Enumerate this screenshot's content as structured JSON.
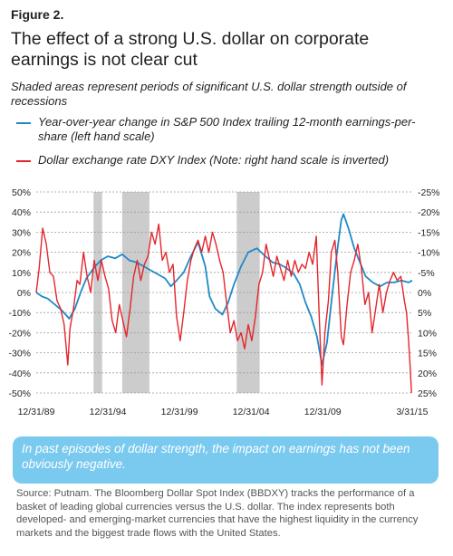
{
  "figure_label": "Figure 2.",
  "title": "The effect of a strong U.S. dollar on corporate earnings is not clear cut",
  "subtitle": "Shaded areas represent periods of significant U.S. dollar strength outside of recessions",
  "callout": "In past episodes of dollar strength, the impact on  earnings has not been obviously negative.",
  "source": "Source: Putnam. The Bloomberg Dollar Spot Index (BBDXY) tracks the performance of a basket of leading global currencies versus the U.S. dollar. The index represents both developed- and emerging-market currencies that have the highest liquidity in the currency markets and the biggest trade flows with the United States.",
  "colors": {
    "eps": "#1e8ac8",
    "dxy": "#e3262d",
    "shade": "#cccccc",
    "callout": "#7ac9ee"
  },
  "chart_data": {
    "type": "line",
    "legend": [
      "Year-over-year change in S&P 500 Index trailing 12-month earnings-per-share (left hand scale)",
      "Dollar exchange rate DXY Index (Note: right hand scale is inverted)"
    ],
    "x_range": [
      1989.0,
      2015.25
    ],
    "x_ticks": [
      {
        "x": 1989.0,
        "label": "12/31/89"
      },
      {
        "x": 1994.0,
        "label": "12/31/94"
      },
      {
        "x": 1999.0,
        "label": "12/31/99"
      },
      {
        "x": 2004.0,
        "label": "12/31/04"
      },
      {
        "x": 2009.0,
        "label": "12/31/09"
      },
      {
        "x": 2015.25,
        "label": "3/31/15"
      }
    ],
    "left_axis": {
      "range": [
        -50,
        50
      ],
      "ticks": [
        50,
        40,
        30,
        20,
        10,
        0,
        -10,
        -20,
        -30,
        -40,
        -50
      ],
      "tick_labels": [
        "50%",
        "40%",
        "30%",
        "20%",
        "10%",
        "0%",
        "-10%",
        "-20%",
        "-30%",
        "-40%",
        "-50%"
      ]
    },
    "right_axis": {
      "inverted": true,
      "range": [
        -25,
        25
      ],
      "ticks": [
        -25,
        -20,
        -15,
        -10,
        -5,
        0,
        5,
        10,
        15,
        20,
        25
      ],
      "tick_labels": [
        "-25%",
        "-20%",
        "-15%",
        "-10%",
        "-5%",
        "0%",
        "5%",
        "10%",
        "15%",
        "20%",
        "25%"
      ]
    },
    "grid": true,
    "shaded_periods": [
      [
        1993.0,
        1993.6
      ],
      [
        1995.0,
        1996.9
      ],
      [
        2003.0,
        2004.6
      ]
    ],
    "series": [
      {
        "name": "Year-over-year change in S&P 500 Index trailing 12-month earnings-per-share (left hand scale)",
        "axis": "left",
        "color": "#1e8ac8",
        "points": [
          [
            1989.0,
            0
          ],
          [
            1989.4,
            -2
          ],
          [
            1989.8,
            -3
          ],
          [
            1990.3,
            -6
          ],
          [
            1990.8,
            -9
          ],
          [
            1991.3,
            -13
          ],
          [
            1991.7,
            -8
          ],
          [
            1992.1,
            0
          ],
          [
            1992.5,
            7
          ],
          [
            1993.0,
            12
          ],
          [
            1993.5,
            16
          ],
          [
            1994.0,
            18
          ],
          [
            1994.5,
            17
          ],
          [
            1995.0,
            19
          ],
          [
            1995.5,
            16
          ],
          [
            1996.0,
            15
          ],
          [
            1996.5,
            13
          ],
          [
            1997.0,
            11
          ],
          [
            1997.5,
            9
          ],
          [
            1998.0,
            7
          ],
          [
            1998.4,
            3
          ],
          [
            1998.8,
            6
          ],
          [
            1999.3,
            10
          ],
          [
            1999.8,
            18
          ],
          [
            2000.3,
            25
          ],
          [
            2000.8,
            13
          ],
          [
            2001.1,
            -2
          ],
          [
            2001.5,
            -8
          ],
          [
            2002.0,
            -11
          ],
          [
            2002.4,
            -5
          ],
          [
            2002.8,
            4
          ],
          [
            2003.3,
            13
          ],
          [
            2003.8,
            20
          ],
          [
            2004.4,
            22
          ],
          [
            2005.0,
            18
          ],
          [
            2005.5,
            15
          ],
          [
            2006.0,
            14
          ],
          [
            2006.5,
            12
          ],
          [
            2007.0,
            9
          ],
          [
            2007.4,
            4
          ],
          [
            2007.8,
            -5
          ],
          [
            2008.2,
            -12
          ],
          [
            2008.6,
            -22
          ],
          [
            2008.95,
            -36
          ],
          [
            2009.3,
            -25
          ],
          [
            2009.6,
            -5
          ],
          [
            2010.0,
            20
          ],
          [
            2010.3,
            36
          ],
          [
            2010.45,
            39
          ],
          [
            2010.8,
            32
          ],
          [
            2011.2,
            22
          ],
          [
            2011.6,
            15
          ],
          [
            2012.0,
            8
          ],
          [
            2012.5,
            5
          ],
          [
            2013.0,
            3
          ],
          [
            2013.5,
            5
          ],
          [
            2014.0,
            5
          ],
          [
            2014.5,
            6
          ],
          [
            2015.0,
            5
          ],
          [
            2015.25,
            6
          ]
        ]
      },
      {
        "name": "Dollar exchange rate DXY Index (Note: right hand scale is inverted)",
        "axis": "right",
        "color": "#e3262d",
        "points": [
          [
            1989.0,
            0
          ],
          [
            1989.2,
            -6
          ],
          [
            1989.45,
            -16
          ],
          [
            1989.7,
            -12
          ],
          [
            1989.95,
            -5
          ],
          [
            1990.2,
            -4
          ],
          [
            1990.45,
            2
          ],
          [
            1990.7,
            4
          ],
          [
            1990.95,
            8
          ],
          [
            1991.2,
            18
          ],
          [
            1991.35,
            9
          ],
          [
            1991.6,
            4
          ],
          [
            1991.85,
            -3
          ],
          [
            1992.05,
            -2
          ],
          [
            1992.3,
            -10
          ],
          [
            1992.55,
            -4
          ],
          [
            1992.8,
            0
          ],
          [
            1993.05,
            -8
          ],
          [
            1993.3,
            -3
          ],
          [
            1993.55,
            -8
          ],
          [
            1993.8,
            -4
          ],
          [
            1994.05,
            -1
          ],
          [
            1994.3,
            7
          ],
          [
            1994.55,
            10
          ],
          [
            1994.8,
            3
          ],
          [
            1995.05,
            7
          ],
          [
            1995.3,
            11
          ],
          [
            1995.55,
            4
          ],
          [
            1995.8,
            -4
          ],
          [
            1996.05,
            -8
          ],
          [
            1996.3,
            -3
          ],
          [
            1996.55,
            -7
          ],
          [
            1996.8,
            -9
          ],
          [
            1997.05,
            -15
          ],
          [
            1997.3,
            -12
          ],
          [
            1997.55,
            -17
          ],
          [
            1997.8,
            -8
          ],
          [
            1998.05,
            -10
          ],
          [
            1998.3,
            -5
          ],
          [
            1998.55,
            -7
          ],
          [
            1998.8,
            6
          ],
          [
            1999.05,
            12
          ],
          [
            1999.3,
            5
          ],
          [
            1999.55,
            -3
          ],
          [
            1999.8,
            -8
          ],
          [
            2000.05,
            -11
          ],
          [
            2000.3,
            -13
          ],
          [
            2000.55,
            -10
          ],
          [
            2000.8,
            -14
          ],
          [
            2001.05,
            -10
          ],
          [
            2001.3,
            -15
          ],
          [
            2001.55,
            -12
          ],
          [
            2001.8,
            -8
          ],
          [
            2002.05,
            -5
          ],
          [
            2002.3,
            3
          ],
          [
            2002.55,
            10
          ],
          [
            2002.8,
            7
          ],
          [
            2003.05,
            12
          ],
          [
            2003.3,
            10
          ],
          [
            2003.55,
            14
          ],
          [
            2003.8,
            8
          ],
          [
            2004.05,
            12
          ],
          [
            2004.3,
            6
          ],
          [
            2004.55,
            -2
          ],
          [
            2004.8,
            -5
          ],
          [
            2005.05,
            -12
          ],
          [
            2005.3,
            -8
          ],
          [
            2005.55,
            -4
          ],
          [
            2005.8,
            -9
          ],
          [
            2006.05,
            -6
          ],
          [
            2006.3,
            -3
          ],
          [
            2006.55,
            -8
          ],
          [
            2006.8,
            -4
          ],
          [
            2007.05,
            -8
          ],
          [
            2007.3,
            -5
          ],
          [
            2007.55,
            -7
          ],
          [
            2007.8,
            -6
          ],
          [
            2008.05,
            -10
          ],
          [
            2008.3,
            -7
          ],
          [
            2008.55,
            -14
          ],
          [
            2008.75,
            5
          ],
          [
            2008.95,
            23
          ],
          [
            2009.15,
            10
          ],
          [
            2009.4,
            2
          ],
          [
            2009.6,
            -10
          ],
          [
            2009.85,
            -13
          ],
          [
            2010.05,
            -5
          ],
          [
            2010.3,
            11
          ],
          [
            2010.45,
            13
          ],
          [
            2010.7,
            3
          ],
          [
            2010.95,
            -5
          ],
          [
            2011.2,
            -8
          ],
          [
            2011.45,
            -12
          ],
          [
            2011.7,
            -6
          ],
          [
            2011.95,
            3
          ],
          [
            2012.2,
            0
          ],
          [
            2012.45,
            10
          ],
          [
            2012.7,
            4
          ],
          [
            2012.95,
            -2
          ],
          [
            2013.2,
            5
          ],
          [
            2013.45,
            0
          ],
          [
            2013.7,
            -3
          ],
          [
            2013.95,
            -5
          ],
          [
            2014.2,
            -3
          ],
          [
            2014.45,
            -4
          ],
          [
            2014.7,
            2
          ],
          [
            2014.85,
            5
          ],
          [
            2015.0,
            12
          ],
          [
            2015.1,
            18
          ],
          [
            2015.2,
            25
          ]
        ]
      }
    ]
  }
}
